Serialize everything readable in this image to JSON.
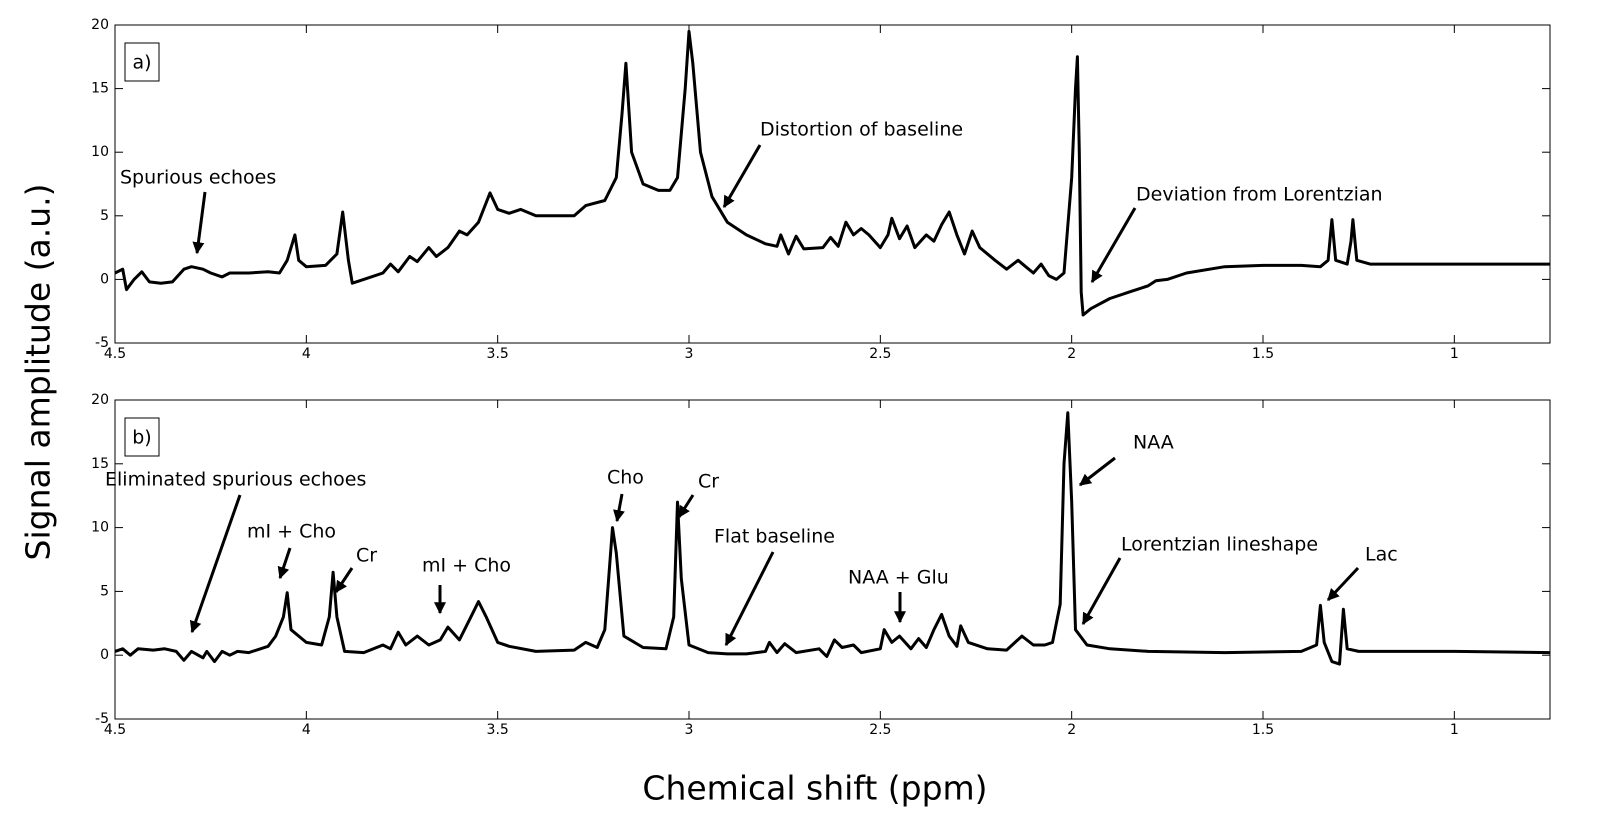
{
  "ylabel": "Signal amplitude (a.u.)",
  "xlabel": "Chemical shift (ppm)",
  "chart_data": [
    {
      "type": "line",
      "panel": "a)",
      "color": "#000000",
      "xlim": [
        4.5,
        0.75
      ],
      "ylim": [
        -5,
        20
      ],
      "xticks": [
        4.5,
        4,
        3.5,
        3,
        2.5,
        2,
        1.5,
        1
      ],
      "yticks": [
        -5,
        0,
        5,
        10,
        15,
        20
      ],
      "annotations": [
        "Spurious echoes",
        "Distortion of baseline",
        "Deviation from Lorentzian"
      ],
      "x": [
        4.5,
        4.48,
        4.47,
        4.45,
        4.43,
        4.41,
        4.38,
        4.35,
        4.32,
        4.3,
        4.27,
        4.25,
        4.22,
        4.2,
        4.15,
        4.1,
        4.07,
        4.05,
        4.03,
        4.02,
        4.0,
        3.95,
        3.92,
        3.905,
        3.89,
        3.88,
        3.85,
        3.8,
        3.78,
        3.76,
        3.73,
        3.71,
        3.68,
        3.66,
        3.63,
        3.6,
        3.58,
        3.55,
        3.52,
        3.5,
        3.47,
        3.44,
        3.4,
        3.35,
        3.3,
        3.27,
        3.22,
        3.19,
        3.175,
        3.165,
        3.15,
        3.12,
        3.08,
        3.05,
        3.03,
        3.01,
        3.0,
        2.99,
        2.97,
        2.94,
        2.9,
        2.85,
        2.8,
        2.77,
        2.76,
        2.74,
        2.72,
        2.7,
        2.65,
        2.63,
        2.61,
        2.59,
        2.57,
        2.55,
        2.53,
        2.5,
        2.48,
        2.47,
        2.45,
        2.43,
        2.41,
        2.38,
        2.36,
        2.34,
        2.32,
        2.3,
        2.28,
        2.26,
        2.24,
        2.2,
        2.17,
        2.14,
        2.12,
        2.1,
        2.08,
        2.06,
        2.04,
        2.02,
        2.0,
        1.99,
        1.985,
        1.98,
        1.975,
        1.97,
        1.95,
        1.9,
        1.85,
        1.8,
        1.78,
        1.75,
        1.7,
        1.6,
        1.5,
        1.4,
        1.35,
        1.33,
        1.32,
        1.31,
        1.28,
        1.27,
        1.265,
        1.255,
        1.22,
        1.1,
        1.0,
        0.9,
        0.75
      ],
      "values": [
        0.5,
        0.8,
        -0.8,
        0,
        0.6,
        -0.2,
        -0.3,
        -0.2,
        0.8,
        1.0,
        0.8,
        0.5,
        0.2,
        0.5,
        0.5,
        0.6,
        0.5,
        1.5,
        3.5,
        1.5,
        1.0,
        1.1,
        2.0,
        5.3,
        1.5,
        -0.3,
        0,
        0.5,
        1.2,
        0.6,
        1.8,
        1.4,
        2.5,
        1.8,
        2.5,
        3.8,
        3.5,
        4.5,
        6.8,
        5.5,
        5.2,
        5.5,
        5.0,
        5.0,
        5.0,
        5.8,
        6.2,
        8,
        13,
        17,
        10,
        7.5,
        7.0,
        7.0,
        8,
        15,
        19.5,
        17,
        10,
        6.5,
        4.5,
        3.5,
        2.8,
        2.6,
        3.5,
        2.0,
        3.4,
        2.4,
        2.5,
        3.3,
        2.6,
        4.5,
        3.5,
        4.0,
        3.5,
        2.5,
        3.5,
        4.8,
        3.2,
        4.2,
        2.5,
        3.5,
        3.0,
        4.3,
        5.3,
        3.5,
        2.0,
        3.8,
        2.5,
        1.5,
        0.8,
        1.5,
        1.0,
        0.5,
        1.2,
        0.3,
        0,
        0.5,
        8,
        15,
        17.5,
        10,
        -1,
        -2.8,
        -2.3,
        -1.5,
        -1.0,
        -0.5,
        -0.1,
        0,
        0.5,
        1.0,
        1.1,
        1.1,
        1.0,
        1.5,
        4.7,
        1.5,
        1.2,
        3,
        4.7,
        1.5,
        1.2,
        1.2,
        1.2,
        1.2,
        1.2
      ]
    },
    {
      "type": "line",
      "panel": "b)",
      "color": "#000000",
      "xlim": [
        4.5,
        0.75
      ],
      "ylim": [
        -5,
        20
      ],
      "xticks": [
        4.5,
        4,
        3.5,
        3,
        2.5,
        2,
        1.5,
        1
      ],
      "yticks": [
        -5,
        0,
        5,
        10,
        15,
        20
      ],
      "annotations": [
        "Eliminated spurious echoes",
        "mI + Cho",
        "Cr",
        "mI + Cho",
        "Cho",
        "Cr",
        "Flat baseline",
        "NAA + Glu",
        "NAA",
        "Lorentzian lineshape",
        "Lac"
      ],
      "x": [
        4.5,
        4.48,
        4.46,
        4.44,
        4.4,
        4.37,
        4.34,
        4.32,
        4.3,
        4.27,
        4.26,
        4.24,
        4.22,
        4.2,
        4.18,
        4.15,
        4.1,
        4.08,
        4.06,
        4.05,
        4.04,
        4.0,
        3.96,
        3.94,
        3.93,
        3.92,
        3.9,
        3.85,
        3.8,
        3.78,
        3.76,
        3.74,
        3.71,
        3.68,
        3.65,
        3.63,
        3.6,
        3.57,
        3.55,
        3.53,
        3.5,
        3.47,
        3.4,
        3.3,
        3.27,
        3.24,
        3.22,
        3.2,
        3.19,
        3.17,
        3.12,
        3.06,
        3.04,
        3.03,
        3.02,
        3.0,
        2.95,
        2.9,
        2.85,
        2.8,
        2.79,
        2.77,
        2.75,
        2.72,
        2.66,
        2.64,
        2.62,
        2.6,
        2.57,
        2.55,
        2.5,
        2.49,
        2.47,
        2.45,
        2.42,
        2.4,
        2.38,
        2.36,
        2.34,
        2.32,
        2.3,
        2.29,
        2.27,
        2.22,
        2.17,
        2.13,
        2.1,
        2.07,
        2.05,
        2.03,
        2.02,
        2.01,
        2.0,
        1.99,
        1.96,
        1.9,
        1.8,
        1.6,
        1.4,
        1.36,
        1.35,
        1.34,
        1.32,
        1.3,
        1.29,
        1.28,
        1.25,
        1.1,
        1.0,
        0.75
      ],
      "values": [
        0.3,
        0.5,
        0,
        0.5,
        0.4,
        0.5,
        0.3,
        -0.4,
        0.3,
        -0.2,
        0.3,
        -0.5,
        0.3,
        0,
        0.3,
        0.2,
        0.7,
        1.5,
        3,
        4.9,
        2,
        1,
        0.8,
        3,
        6.5,
        3,
        0.3,
        0.2,
        0.8,
        0.5,
        1.8,
        0.8,
        1.5,
        0.8,
        1.2,
        2.2,
        1.2,
        3,
        4.2,
        3,
        1,
        0.7,
        0.3,
        0.4,
        1.0,
        0.6,
        2,
        10,
        8,
        1.5,
        0.6,
        0.5,
        3,
        12,
        6,
        0.8,
        0.2,
        0.1,
        0.1,
        0.3,
        1,
        0.2,
        0.9,
        0.2,
        0.5,
        -0.1,
        1.2,
        0.6,
        0.8,
        0.2,
        0.5,
        2.0,
        1.0,
        1.5,
        0.5,
        1.3,
        0.6,
        2,
        3.2,
        1.5,
        0.7,
        2.3,
        1.0,
        0.5,
        0.4,
        1.5,
        0.8,
        0.8,
        1.0,
        4,
        15,
        19,
        12,
        2,
        0.8,
        0.5,
        0.3,
        0.2,
        0.3,
        0.8,
        3.9,
        1,
        -0.5,
        -0.7,
        3.6,
        0.5,
        0.3,
        0.3,
        0.3,
        0.2
      ]
    }
  ]
}
